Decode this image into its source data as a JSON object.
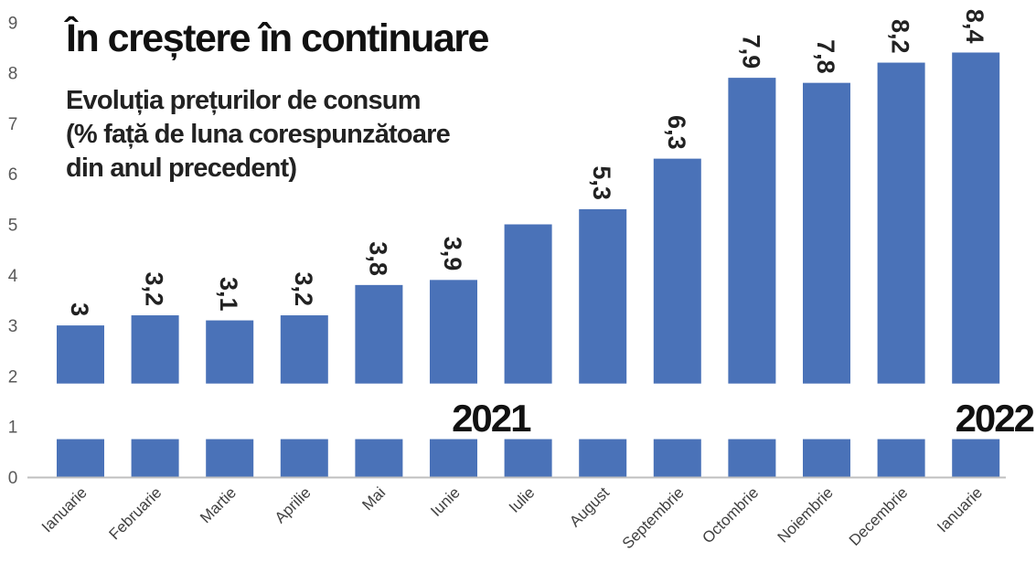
{
  "title": "În creștere în continuare",
  "subtitle_lines": [
    "Evoluția prețurilor de consum",
    "(% față de luna corespunzătoare",
    "din anul precedent)"
  ],
  "year_labels": [
    "2021",
    "2022"
  ],
  "colors": {
    "bar": "#4a72b8",
    "axis": "#bfbfbf",
    "text": "#111111"
  },
  "chart_data": {
    "type": "bar",
    "title": "În creștere în continuare",
    "subtitle": "Evoluția prețurilor de consum (% față de luna corespunzătoare din anul precedent)",
    "categories": [
      "Ianuarie",
      "Februarie",
      "Martie",
      "Aprilie",
      "Mai",
      "Iunie",
      "Iulie",
      "August",
      "Septembrie",
      "Octombrie",
      "Noiembrie",
      "Decembrie",
      "Ianuarie"
    ],
    "values": [
      3,
      3.2,
      3.1,
      3.2,
      3.8,
      3.9,
      5.0,
      5.3,
      6.3,
      7.9,
      7.8,
      8.2,
      8.4
    ],
    "data_labels": [
      "3",
      "3,2",
      "3,1",
      "3,2",
      "3,8",
      "3,9",
      "",
      "5,3",
      "6,3",
      "7,9",
      "7,8",
      "8,2",
      "8,4"
    ],
    "yticks": [
      "0",
      "1",
      "2",
      "3",
      "4",
      "5",
      "6",
      "7",
      "8",
      "9"
    ],
    "ylim": [
      0,
      9
    ],
    "axis_break": [
      0.75,
      1.85
    ],
    "xlabel": "",
    "ylabel": "",
    "grid": false,
    "legend": "none"
  }
}
